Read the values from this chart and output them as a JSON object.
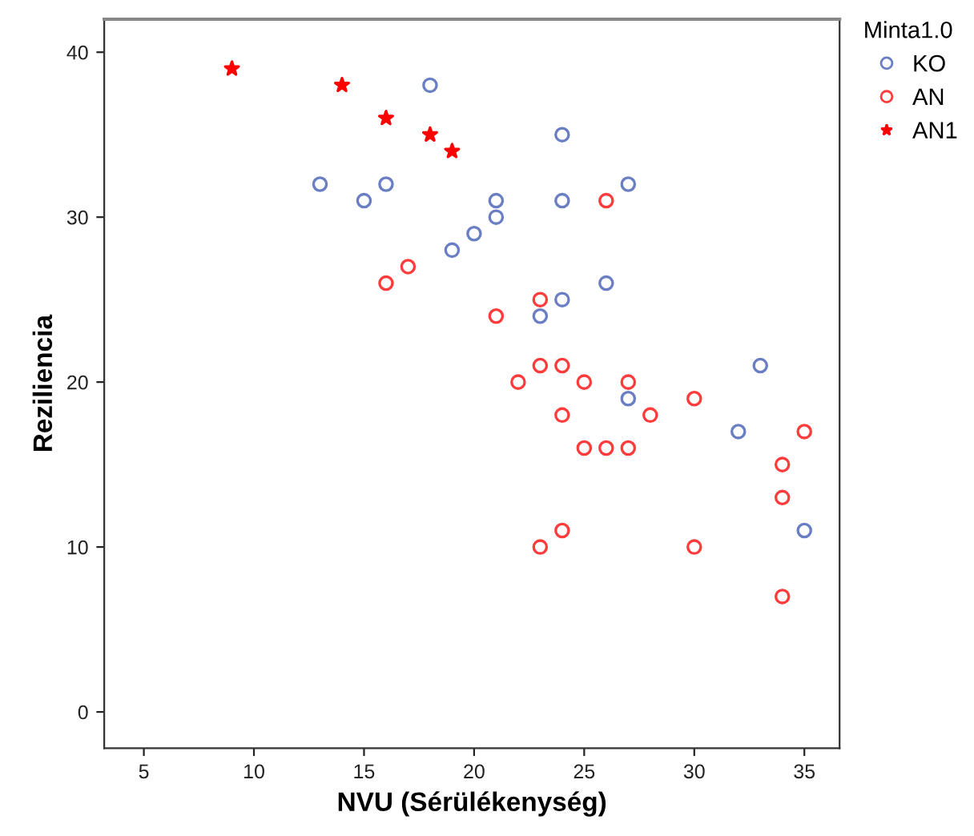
{
  "chart_data": {
    "type": "scatter",
    "xlabel": "NVU (Sérülékenység)",
    "ylabel": "Reziliencia",
    "legend_title": "Minta1.0",
    "legend": "right",
    "grid": false,
    "xlim": [
      3.2,
      36.6
    ],
    "ylim": [
      -2.2,
      42
    ],
    "xticks": [
      5,
      10,
      15,
      20,
      25,
      30,
      35
    ],
    "yticks": [
      0,
      10,
      20,
      30,
      40
    ],
    "series": [
      {
        "name": "KO",
        "color": "#6a7ec4",
        "marker": "circle",
        "x": [
          18,
          24,
          13,
          16,
          27,
          15,
          21,
          24,
          21,
          20,
          19,
          26,
          24,
          23,
          33,
          27,
          32,
          35
        ],
        "values": [
          38,
          35,
          32,
          32,
          32,
          31,
          31,
          31,
          30,
          29,
          28,
          26,
          25,
          24,
          21,
          19,
          17,
          11
        ]
      },
      {
        "name": "AN",
        "color": "#ff3b3b",
        "marker": "circle",
        "x": [
          26,
          16,
          17,
          23,
          21,
          23,
          24,
          22,
          25,
          27,
          30,
          24,
          28,
          25,
          26,
          27,
          35,
          34,
          34,
          24,
          23,
          30,
          34
        ],
        "values": [
          31,
          26,
          27,
          25,
          24,
          21,
          21,
          20,
          20,
          20,
          19,
          18,
          18,
          16,
          16,
          16,
          17,
          15,
          13,
          11,
          10,
          10,
          7
        ]
      },
      {
        "name": "AN1",
        "color": "#ff0000",
        "marker": "star",
        "x": [
          9,
          14,
          16,
          18,
          19
        ],
        "values": [
          39,
          38,
          36,
          35,
          34
        ]
      }
    ]
  }
}
